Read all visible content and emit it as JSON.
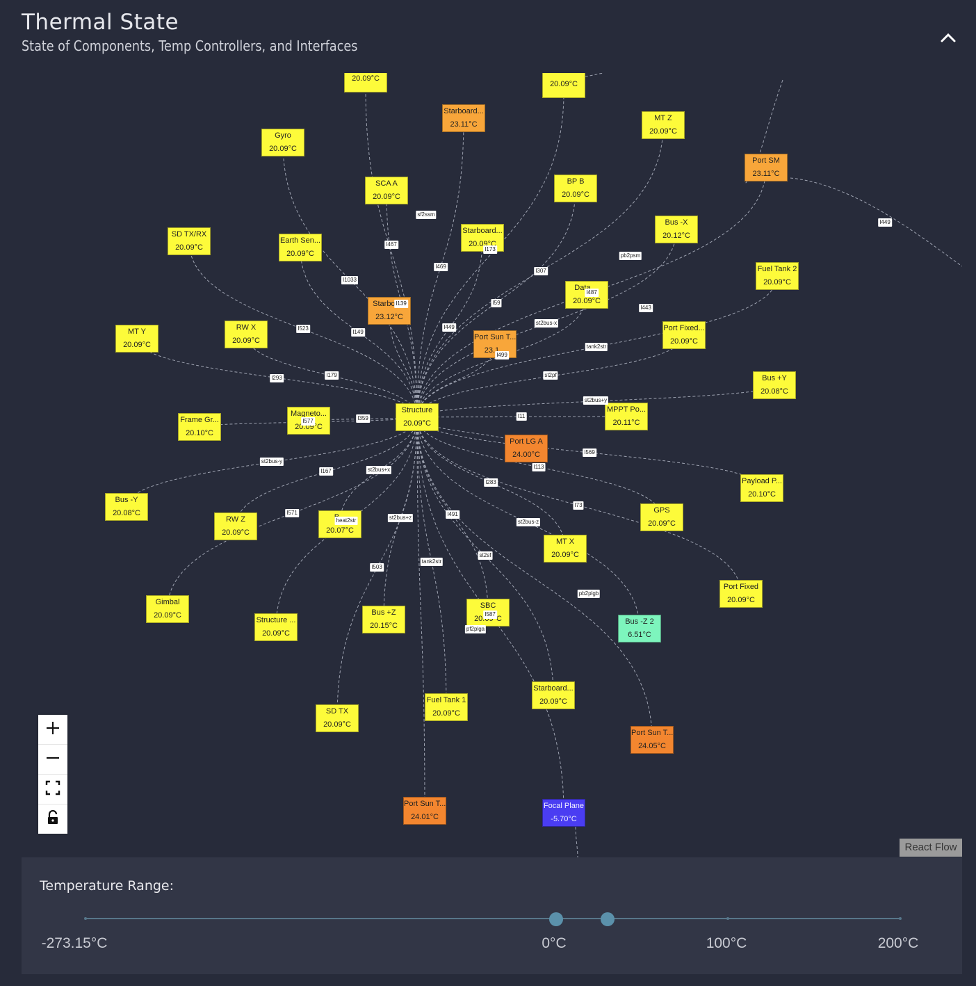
{
  "header": {
    "title": "Thermal State",
    "subtitle": "State of Components, Temp Controllers, and Interfaces"
  },
  "colors": {
    "yellow": "#fdfb3a",
    "orange_light": "#f8a63a",
    "orange": "#f3862f",
    "green": "#7df5bd",
    "blue": "#4a3df2",
    "edge": "#9ea3b1"
  },
  "nodes": [
    {
      "id": "n_top1",
      "name": "",
      "temp": "20.09°C",
      "color": "yellow"
    },
    {
      "id": "n_top2",
      "name": "",
      "temp": "20.09°C",
      "color": "yellow"
    },
    {
      "id": "n_sb1",
      "name": "Starboard...",
      "temp": "23.11°C",
      "color": "orange_light"
    },
    {
      "id": "n_mtz",
      "name": "MT Z",
      "temp": "20.09°C",
      "color": "yellow"
    },
    {
      "id": "n_portsm",
      "name": "Port SM",
      "temp": "23.11°C",
      "color": "orange_light"
    },
    {
      "id": "n_gyro",
      "name": "Gyro",
      "temp": "20.09°C",
      "color": "yellow"
    },
    {
      "id": "n_scaa",
      "name": "SCA A",
      "temp": "20.09°C",
      "color": "yellow"
    },
    {
      "id": "n_bpb",
      "name": "BP B",
      "temp": "20.09°C",
      "color": "yellow"
    },
    {
      "id": "n_busmx",
      "name": "Bus -X",
      "temp": "20.12°C",
      "color": "yellow"
    },
    {
      "id": "n_sdtxrx",
      "name": "SD TX/RX",
      "temp": "20.09°C",
      "color": "yellow"
    },
    {
      "id": "n_earth",
      "name": "Earth Sen...",
      "temp": "20.09°C",
      "color": "yellow"
    },
    {
      "id": "n_sb2",
      "name": "Starboard...",
      "temp": "20.09°C",
      "color": "yellow"
    },
    {
      "id": "n_fuel2",
      "name": "Fuel Tank 2",
      "temp": "20.09°C",
      "color": "yellow"
    },
    {
      "id": "n_data",
      "name": "Data ...",
      "temp": "20.09°C",
      "color": "yellow"
    },
    {
      "id": "n_sb3",
      "name": "Starboa...",
      "temp": "23.12°C",
      "color": "orange_light"
    },
    {
      "id": "n_mty",
      "name": "MT Y",
      "temp": "20.09°C",
      "color": "yellow"
    },
    {
      "id": "n_rwx",
      "name": "RW X",
      "temp": "20.09°C",
      "color": "yellow"
    },
    {
      "id": "n_portsun1",
      "name": "Port Sun T...",
      "temp": "23.1...",
      "color": "orange_light"
    },
    {
      "id": "n_portfixed1",
      "name": "Port Fixed...",
      "temp": "20.09°C",
      "color": "yellow"
    },
    {
      "id": "n_busy",
      "name": "Bus +Y",
      "temp": "20.08°C",
      "color": "yellow"
    },
    {
      "id": "n_framegr",
      "name": "Frame Gr...",
      "temp": "20.10°C",
      "color": "yellow"
    },
    {
      "id": "n_magneto",
      "name": "Magneto...",
      "temp": "20.09°C",
      "color": "yellow"
    },
    {
      "id": "n_structure",
      "name": "Structure",
      "temp": "20.09°C",
      "color": "yellow"
    },
    {
      "id": "n_mppt",
      "name": "MPPT Po...",
      "temp": "20.11°C",
      "color": "yellow"
    },
    {
      "id": "n_portlga",
      "name": "Port LG A",
      "temp": "24.00°C",
      "color": "orange"
    },
    {
      "id": "n_payload",
      "name": "Payload P...",
      "temp": "20.10°C",
      "color": "yellow"
    },
    {
      "id": "n_busmy",
      "name": "Bus -Y",
      "temp": "20.08°C",
      "color": "yellow"
    },
    {
      "id": "n_rwz",
      "name": "RW Z",
      "temp": "20.09°C",
      "color": "yellow"
    },
    {
      "id": "n_bux",
      "name": "B...",
      "temp": "20.07°C",
      "color": "yellow"
    },
    {
      "id": "n_gps",
      "name": "GPS",
      "temp": "20.09°C",
      "color": "yellow"
    },
    {
      "id": "n_mtx",
      "name": "MT X",
      "temp": "20.09°C",
      "color": "yellow"
    },
    {
      "id": "n_portfixed2",
      "name": "Port Fixed",
      "temp": "20.09°C",
      "color": "yellow"
    },
    {
      "id": "n_gimbal",
      "name": "Gimbal",
      "temp": "20.09°C",
      "color": "yellow"
    },
    {
      "id": "n_struct2",
      "name": "Structure ...",
      "temp": "20.09°C",
      "color": "yellow"
    },
    {
      "id": "n_busz",
      "name": "Bus +Z",
      "temp": "20.15°C",
      "color": "yellow"
    },
    {
      "id": "n_sbc",
      "name": "SBC",
      "temp": "20.09°C",
      "color": "yellow"
    },
    {
      "id": "n_busmz2",
      "name": "Bus -Z 2",
      "temp": "6.51°C",
      "color": "green"
    },
    {
      "id": "n_sdtx",
      "name": "SD TX",
      "temp": "20.09°C",
      "color": "yellow"
    },
    {
      "id": "n_fuel1",
      "name": "Fuel Tank 1",
      "temp": "20.09°C",
      "color": "yellow"
    },
    {
      "id": "n_sb4",
      "name": "Starboard...",
      "temp": "20.09°C",
      "color": "yellow"
    },
    {
      "id": "n_portsun2",
      "name": "Port Sun T...",
      "temp": "24.05°C",
      "color": "orange"
    },
    {
      "id": "n_portsun3",
      "name": "Port Sun T...",
      "temp": "24.01°C",
      "color": "orange"
    },
    {
      "id": "n_focal",
      "name": "Focal Plane",
      "temp": "-5.70°C",
      "color": "blue"
    }
  ],
  "edge_labels": [
    "sf2ssm",
    "I467",
    "I469",
    "I173",
    "I307",
    "pb2psm",
    "I1033",
    "I139",
    "I59",
    "I487",
    "I443",
    "I523",
    "I149",
    "I449",
    "st2bus-x",
    "I499",
    "tank2str",
    "I293",
    "I179",
    "st2pf",
    "st2bus+y",
    "I577",
    "I359",
    "I11",
    "I569",
    "st2bus-y",
    "I167",
    "st2bus+x",
    "I113",
    "I283",
    "I73",
    "I571",
    "heat2str",
    "st2bus+z",
    "I491",
    "st2bus-z",
    "st2sf",
    "I503",
    "tank2str",
    "pb2plgb",
    "I587",
    "pf2plga",
    "I449"
  ],
  "controls": {
    "zoom_in": "plus-icon",
    "zoom_out": "minus-icon",
    "fit_view": "fit-view-icon",
    "lock": "lock-icon"
  },
  "attribution": "React Flow",
  "temperature_range": {
    "label": "Temperature Range:",
    "min": -273.15,
    "max": 200,
    "low_value": 0,
    "high_value": 30,
    "marks": [
      "-273.15°C",
      "0°C",
      "100°C",
      "200°C"
    ]
  }
}
